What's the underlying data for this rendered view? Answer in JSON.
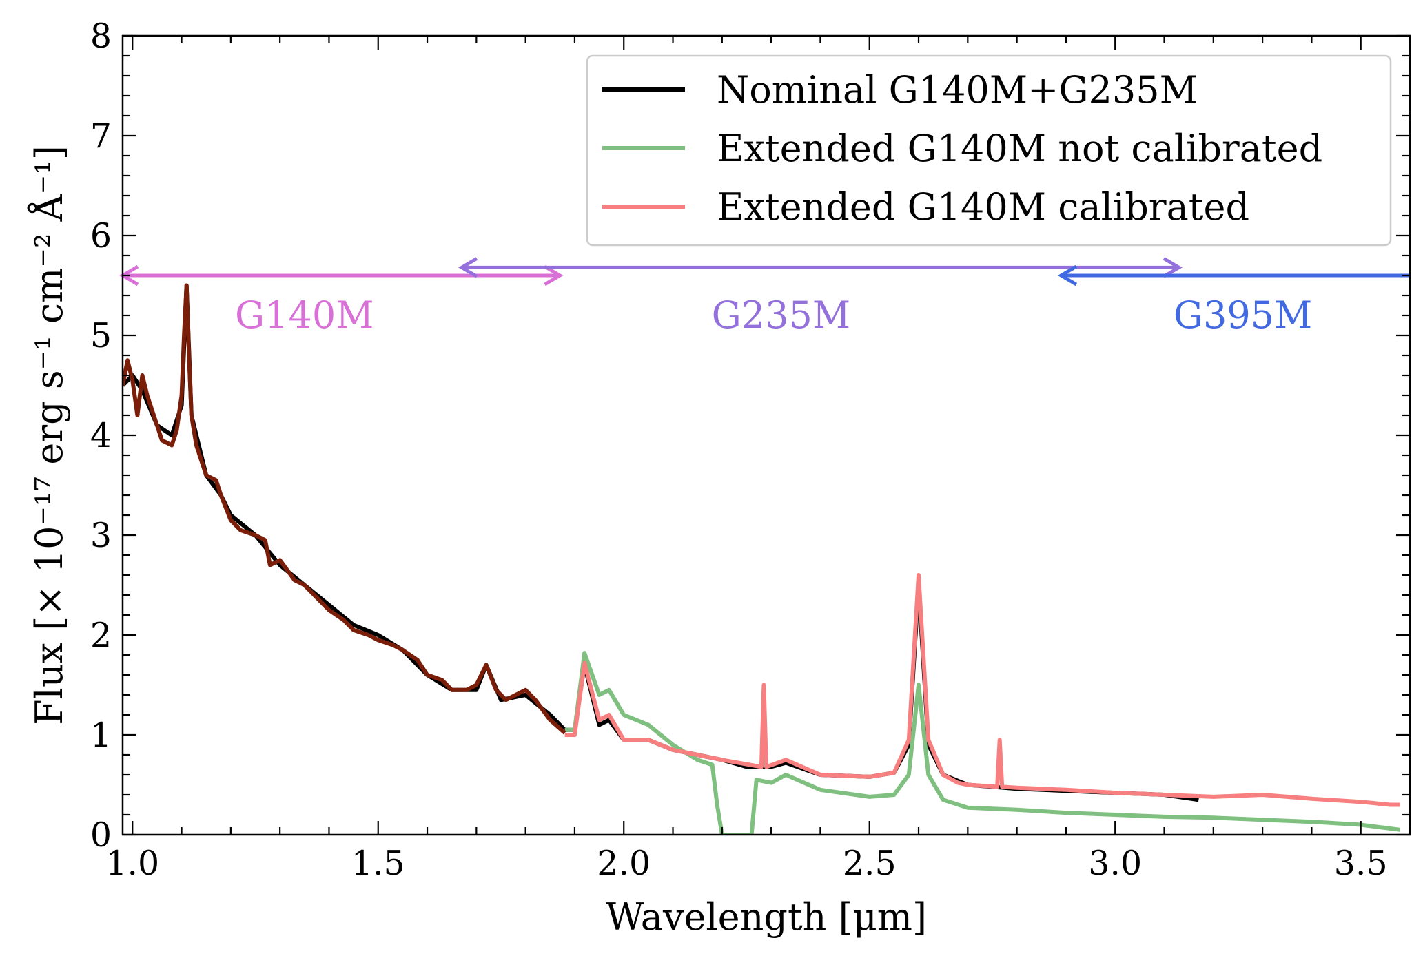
{
  "chart_data": {
    "type": "line",
    "xlabel": "Wavelength [μm]",
    "ylabel": "Flux [× 10⁻¹⁷ erg s⁻¹ cm⁻² Å⁻¹]",
    "xlim": [
      0.98,
      3.6
    ],
    "ylim": [
      0,
      8
    ],
    "x_ticks": [
      1.0,
      1.5,
      2.0,
      2.5,
      3.0,
      3.5
    ],
    "x_tick_labels": [
      "1.0",
      "1.5",
      "2.0",
      "2.5",
      "3.0",
      "3.5"
    ],
    "y_ticks": [
      0,
      1,
      2,
      3,
      4,
      5,
      6,
      7,
      8
    ],
    "y_tick_labels": [
      "0",
      "1",
      "2",
      "3",
      "4",
      "5",
      "6",
      "7",
      "8"
    ],
    "legend_position": "top-right",
    "series": [
      {
        "name": "Nominal G140M+G235M",
        "color": "#000000",
        "points": [
          [
            0.98,
            4.5
          ],
          [
            1.0,
            4.6
          ],
          [
            1.02,
            4.45
          ],
          [
            1.05,
            4.1
          ],
          [
            1.08,
            4.0
          ],
          [
            1.1,
            4.3
          ],
          [
            1.11,
            5.5
          ],
          [
            1.12,
            4.2
          ],
          [
            1.15,
            3.6
          ],
          [
            1.18,
            3.4
          ],
          [
            1.2,
            3.2
          ],
          [
            1.25,
            3.0
          ],
          [
            1.3,
            2.7
          ],
          [
            1.35,
            2.5
          ],
          [
            1.4,
            2.3
          ],
          [
            1.45,
            2.1
          ],
          [
            1.5,
            2.0
          ],
          [
            1.55,
            1.85
          ],
          [
            1.6,
            1.6
          ],
          [
            1.65,
            1.45
          ],
          [
            1.7,
            1.45
          ],
          [
            1.72,
            1.7
          ],
          [
            1.75,
            1.35
          ],
          [
            1.8,
            1.4
          ],
          [
            1.85,
            1.2
          ],
          [
            1.88,
            1.05
          ],
          [
            1.9,
            1.05
          ],
          [
            1.92,
            1.7
          ],
          [
            1.95,
            1.1
          ],
          [
            1.97,
            1.15
          ],
          [
            2.0,
            0.95
          ],
          [
            2.05,
            0.95
          ],
          [
            2.1,
            0.85
          ],
          [
            2.15,
            0.8
          ],
          [
            2.2,
            0.75
          ],
          [
            2.25,
            0.68
          ],
          [
            2.3,
            0.68
          ],
          [
            2.33,
            0.72
          ],
          [
            2.4,
            0.6
          ],
          [
            2.5,
            0.58
          ],
          [
            2.55,
            0.62
          ],
          [
            2.58,
            0.9
          ],
          [
            2.6,
            2.5
          ],
          [
            2.62,
            0.9
          ],
          [
            2.65,
            0.6
          ],
          [
            2.7,
            0.5
          ],
          [
            2.8,
            0.46
          ],
          [
            2.9,
            0.44
          ],
          [
            3.0,
            0.42
          ],
          [
            3.1,
            0.4
          ],
          [
            3.17,
            0.35
          ]
        ]
      },
      {
        "name": "Extended G140M not calibrated",
        "color": "#7fbf7f",
        "points": [
          [
            1.88,
            1.05
          ],
          [
            1.9,
            1.05
          ],
          [
            1.92,
            1.82
          ],
          [
            1.95,
            1.4
          ],
          [
            1.97,
            1.45
          ],
          [
            2.0,
            1.2
          ],
          [
            2.05,
            1.1
          ],
          [
            2.1,
            0.9
          ],
          [
            2.15,
            0.75
          ],
          [
            2.18,
            0.7
          ],
          [
            2.19,
            0.3
          ],
          [
            2.2,
            0.0
          ],
          [
            2.26,
            0.0
          ],
          [
            2.27,
            0.55
          ],
          [
            2.3,
            0.52
          ],
          [
            2.33,
            0.6
          ],
          [
            2.4,
            0.45
          ],
          [
            2.5,
            0.38
          ],
          [
            2.55,
            0.4
          ],
          [
            2.58,
            0.6
          ],
          [
            2.6,
            1.5
          ],
          [
            2.62,
            0.6
          ],
          [
            2.65,
            0.35
          ],
          [
            2.7,
            0.27
          ],
          [
            2.8,
            0.25
          ],
          [
            2.9,
            0.22
          ],
          [
            3.0,
            0.2
          ],
          [
            3.1,
            0.18
          ],
          [
            3.2,
            0.17
          ],
          [
            3.3,
            0.15
          ],
          [
            3.4,
            0.13
          ],
          [
            3.5,
            0.1
          ],
          [
            3.58,
            0.05
          ]
        ]
      },
      {
        "name": "Extended G140M calibrated",
        "color": "#f77f7f",
        "points": [
          [
            1.88,
            1.0
          ],
          [
            1.9,
            1.0
          ],
          [
            1.92,
            1.72
          ],
          [
            1.95,
            1.15
          ],
          [
            1.97,
            1.2
          ],
          [
            2.0,
            0.95
          ],
          [
            2.05,
            0.95
          ],
          [
            2.1,
            0.85
          ],
          [
            2.15,
            0.8
          ],
          [
            2.2,
            0.75
          ],
          [
            2.28,
            0.68
          ],
          [
            2.285,
            1.5
          ],
          [
            2.29,
            0.68
          ],
          [
            2.33,
            0.75
          ],
          [
            2.4,
            0.6
          ],
          [
            2.5,
            0.58
          ],
          [
            2.55,
            0.62
          ],
          [
            2.58,
            0.95
          ],
          [
            2.6,
            2.6
          ],
          [
            2.62,
            0.95
          ],
          [
            2.65,
            0.6
          ],
          [
            2.68,
            0.52
          ],
          [
            2.7,
            0.5
          ],
          [
            2.76,
            0.48
          ],
          [
            2.765,
            0.95
          ],
          [
            2.77,
            0.48
          ],
          [
            2.8,
            0.47
          ],
          [
            2.9,
            0.45
          ],
          [
            3.0,
            0.42
          ],
          [
            3.1,
            0.4
          ],
          [
            3.2,
            0.38
          ],
          [
            3.3,
            0.4
          ],
          [
            3.4,
            0.36
          ],
          [
            3.5,
            0.33
          ],
          [
            3.56,
            0.3
          ],
          [
            3.58,
            0.3
          ]
        ]
      }
    ],
    "combined_trace": {
      "color": "#7a1e0a",
      "points": [
        [
          0.98,
          4.5
        ],
        [
          0.99,
          4.75
        ],
        [
          1.0,
          4.55
        ],
        [
          1.01,
          4.2
        ],
        [
          1.02,
          4.6
        ],
        [
          1.03,
          4.4
        ],
        [
          1.05,
          4.1
        ],
        [
          1.06,
          3.95
        ],
        [
          1.08,
          3.9
        ],
        [
          1.09,
          4.05
        ],
        [
          1.1,
          4.4
        ],
        [
          1.105,
          5.0
        ],
        [
          1.11,
          5.5
        ],
        [
          1.115,
          4.8
        ],
        [
          1.12,
          4.2
        ],
        [
          1.13,
          3.9
        ],
        [
          1.15,
          3.6
        ],
        [
          1.17,
          3.55
        ],
        [
          1.18,
          3.4
        ],
        [
          1.2,
          3.15
        ],
        [
          1.22,
          3.05
        ],
        [
          1.25,
          3.0
        ],
        [
          1.27,
          2.95
        ],
        [
          1.28,
          2.7
        ],
        [
          1.3,
          2.75
        ],
        [
          1.33,
          2.55
        ],
        [
          1.35,
          2.5
        ],
        [
          1.38,
          2.35
        ],
        [
          1.4,
          2.25
        ],
        [
          1.43,
          2.15
        ],
        [
          1.45,
          2.05
        ],
        [
          1.48,
          2.0
        ],
        [
          1.5,
          1.95
        ],
        [
          1.53,
          1.9
        ],
        [
          1.55,
          1.85
        ],
        [
          1.58,
          1.75
        ],
        [
          1.6,
          1.6
        ],
        [
          1.63,
          1.55
        ],
        [
          1.65,
          1.45
        ],
        [
          1.68,
          1.45
        ],
        [
          1.7,
          1.5
        ],
        [
          1.72,
          1.7
        ],
        [
          1.74,
          1.45
        ],
        [
          1.76,
          1.35
        ],
        [
          1.78,
          1.4
        ],
        [
          1.8,
          1.45
        ],
        [
          1.82,
          1.35
        ],
        [
          1.85,
          1.15
        ],
        [
          1.88,
          1.02
        ]
      ]
    },
    "ranges": [
      {
        "label": "G140M",
        "x_start": 0.98,
        "x_end": 1.87,
        "y": 5.6,
        "color": "#d870d8",
        "left_arrow": true,
        "right_arrow": true
      },
      {
        "label": "G235M",
        "x_start": 1.67,
        "x_end": 3.13,
        "y": 5.68,
        "color": "#9370db",
        "left_arrow": true,
        "right_arrow": true
      },
      {
        "label": "G395M",
        "x_start": 2.89,
        "x_end": 3.6,
        "y": 5.6,
        "color": "#4169e1",
        "left_arrow": true,
        "right_arrow": false
      }
    ],
    "range_labels": [
      {
        "text": "G140M",
        "x": 1.35,
        "y": 5.2
      },
      {
        "text": "G235M",
        "x": 2.32,
        "y": 5.2
      },
      {
        "text": "G395M",
        "x": 3.26,
        "y": 5.2
      }
    ]
  }
}
